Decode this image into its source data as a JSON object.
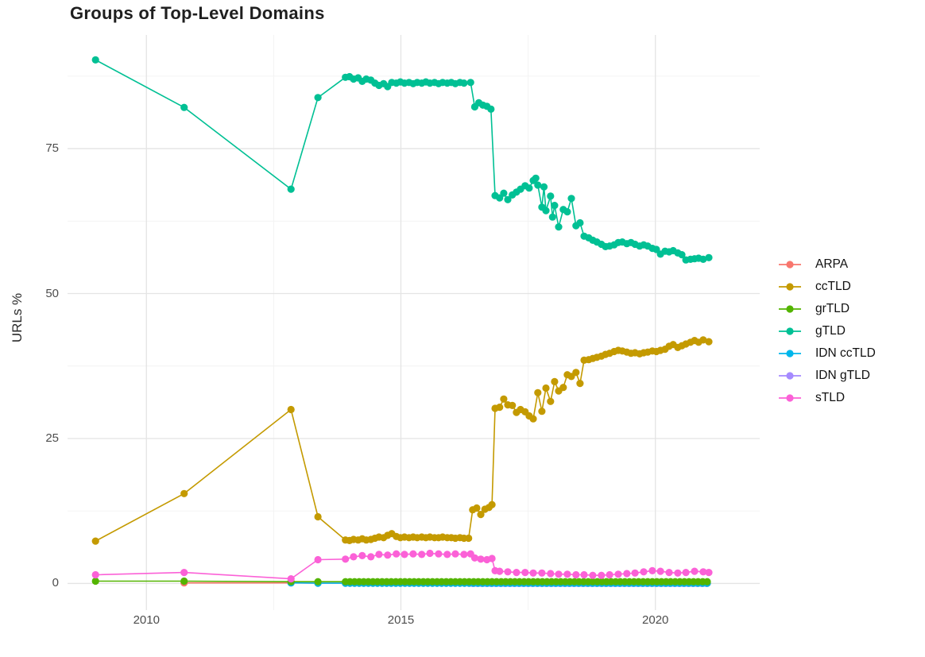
{
  "chart": {
    "title": "Groups of Top-Level Domains",
    "ylabel": "URLs %"
  },
  "chart_data": {
    "type": "line",
    "title": "Groups of Top-Level Domains",
    "xlabel": "",
    "ylabel": "URLs %",
    "xlim": [
      2008.45,
      2022.05
    ],
    "ylim": [
      -4.6,
      94.6
    ],
    "grid": true,
    "legend_position": "right",
    "marker": "circle",
    "x_ticks": [
      {
        "value": 2010,
        "label": "2010"
      },
      {
        "value": 2015,
        "label": "2015"
      },
      {
        "value": 2020,
        "label": "2020"
      }
    ],
    "y_ticks": [
      {
        "value": 0,
        "label": "0"
      },
      {
        "value": 25,
        "label": "25"
      },
      {
        "value": 50,
        "label": "50"
      },
      {
        "value": 75,
        "label": "75"
      }
    ],
    "x_minor": [
      2012.5,
      2017.5
    ],
    "y_minor": [
      12.5,
      37.5,
      62.5,
      87.5
    ],
    "grid_major_color": "#e4e4e4",
    "grid_minor_color": "#f2f2f2",
    "axis_text_color": "#4d4d4d",
    "z_order": [
      "ARPA",
      "IDN gTLD",
      "IDN ccTLD",
      "gTLD",
      "ccTLD",
      "grTLD",
      "sTLD"
    ],
    "series": [
      {
        "name": "ARPA",
        "color": "#F8766D",
        "points": [
          [
            2010.74,
            0.1
          ],
          [
            2012.84,
            0.1
          ],
          [
            2013.37,
            0.05
          ]
        ],
        "flat": {
          "from": 2013.91,
          "to": 2021.05,
          "step": 0.09,
          "value": 0.05
        }
      },
      {
        "name": "ccTLD",
        "color": "#C49A00",
        "points": [
          [
            2009.0,
            7.3
          ],
          [
            2010.74,
            15.5
          ],
          [
            2012.84,
            30.0
          ],
          [
            2013.37,
            11.5
          ],
          [
            2013.91,
            7.5
          ],
          [
            2013.99,
            7.4
          ],
          [
            2014.07,
            7.6
          ],
          [
            2014.16,
            7.5
          ],
          [
            2014.24,
            7.7
          ],
          [
            2014.32,
            7.5
          ],
          [
            2014.41,
            7.6
          ],
          [
            2014.49,
            7.8
          ],
          [
            2014.57,
            8.0
          ],
          [
            2014.66,
            7.9
          ],
          [
            2014.74,
            8.3
          ],
          [
            2014.82,
            8.6
          ],
          [
            2014.91,
            8.1
          ],
          [
            2014.99,
            7.9
          ],
          [
            2015.07,
            8.0
          ],
          [
            2015.16,
            7.9
          ],
          [
            2015.24,
            8.0
          ],
          [
            2015.32,
            7.9
          ],
          [
            2015.41,
            8.0
          ],
          [
            2015.49,
            7.9
          ],
          [
            2015.57,
            8.0
          ],
          [
            2015.66,
            7.9
          ],
          [
            2015.74,
            7.9
          ],
          [
            2015.82,
            8.0
          ],
          [
            2015.91,
            7.9
          ],
          [
            2015.99,
            7.9
          ],
          [
            2016.07,
            7.8
          ],
          [
            2016.16,
            7.9
          ],
          [
            2016.24,
            7.8
          ],
          [
            2016.33,
            7.8
          ],
          [
            2016.41,
            12.7
          ],
          [
            2016.49,
            13.0
          ],
          [
            2016.57,
            11.9
          ],
          [
            2016.65,
            12.8
          ],
          [
            2016.73,
            13.1
          ],
          [
            2016.79,
            13.6
          ],
          [
            2016.85,
            30.2
          ],
          [
            2016.94,
            30.4
          ],
          [
            2017.02,
            31.8
          ],
          [
            2017.1,
            30.8
          ],
          [
            2017.19,
            30.7
          ],
          [
            2017.27,
            29.5
          ],
          [
            2017.35,
            30.0
          ],
          [
            2017.44,
            29.6
          ],
          [
            2017.52,
            28.9
          ],
          [
            2017.6,
            28.4
          ],
          [
            2017.69,
            32.9
          ],
          [
            2017.77,
            29.7
          ],
          [
            2017.85,
            33.7
          ],
          [
            2017.94,
            31.4
          ],
          [
            2018.02,
            34.8
          ],
          [
            2018.1,
            33.2
          ],
          [
            2018.19,
            33.8
          ],
          [
            2018.27,
            36.0
          ],
          [
            2018.35,
            35.7
          ],
          [
            2018.44,
            36.4
          ],
          [
            2018.52,
            34.5
          ],
          [
            2018.6,
            38.5
          ],
          [
            2018.69,
            38.6
          ],
          [
            2018.77,
            38.8
          ],
          [
            2018.85,
            39.0
          ],
          [
            2018.94,
            39.2
          ],
          [
            2019.02,
            39.5
          ],
          [
            2019.1,
            39.7
          ],
          [
            2019.19,
            40.0
          ],
          [
            2019.27,
            40.2
          ],
          [
            2019.35,
            40.1
          ],
          [
            2019.44,
            39.9
          ],
          [
            2019.52,
            39.7
          ],
          [
            2019.6,
            39.8
          ],
          [
            2019.69,
            39.6
          ],
          [
            2019.77,
            39.8
          ],
          [
            2019.85,
            39.9
          ],
          [
            2019.94,
            40.1
          ],
          [
            2020.02,
            40.0
          ],
          [
            2020.1,
            40.2
          ],
          [
            2020.19,
            40.4
          ],
          [
            2020.27,
            40.9
          ],
          [
            2020.35,
            41.2
          ],
          [
            2020.44,
            40.7
          ],
          [
            2020.52,
            41.0
          ],
          [
            2020.6,
            41.3
          ],
          [
            2020.69,
            41.6
          ],
          [
            2020.77,
            41.9
          ],
          [
            2020.85,
            41.6
          ],
          [
            2020.94,
            42.0
          ],
          [
            2021.05,
            41.7
          ]
        ]
      },
      {
        "name": "grTLD",
        "color": "#53B400",
        "points": [
          [
            2009.0,
            0.4
          ],
          [
            2010.74,
            0.4
          ],
          [
            2012.84,
            0.3
          ],
          [
            2013.37,
            0.3
          ]
        ],
        "flat": {
          "from": 2013.91,
          "to": 2021.05,
          "step": 0.09,
          "value": 0.3
        }
      },
      {
        "name": "gTLD",
        "color": "#00C094",
        "points": [
          [
            2009.0,
            90.3
          ],
          [
            2010.74,
            82.1
          ],
          [
            2012.84,
            68.0
          ],
          [
            2013.37,
            83.8
          ],
          [
            2013.91,
            87.3
          ],
          [
            2013.99,
            87.4
          ],
          [
            2014.07,
            87.0
          ],
          [
            2014.16,
            87.2
          ],
          [
            2014.24,
            86.6
          ],
          [
            2014.32,
            87.0
          ],
          [
            2014.41,
            86.8
          ],
          [
            2014.49,
            86.3
          ],
          [
            2014.57,
            85.9
          ],
          [
            2014.66,
            86.2
          ],
          [
            2014.74,
            85.7
          ],
          [
            2014.82,
            86.4
          ],
          [
            2014.91,
            86.3
          ],
          [
            2014.99,
            86.5
          ],
          [
            2015.07,
            86.3
          ],
          [
            2015.16,
            86.4
          ],
          [
            2015.24,
            86.2
          ],
          [
            2015.32,
            86.4
          ],
          [
            2015.41,
            86.3
          ],
          [
            2015.49,
            86.5
          ],
          [
            2015.57,
            86.3
          ],
          [
            2015.66,
            86.4
          ],
          [
            2015.74,
            86.2
          ],
          [
            2015.82,
            86.4
          ],
          [
            2015.91,
            86.3
          ],
          [
            2015.99,
            86.4
          ],
          [
            2016.07,
            86.2
          ],
          [
            2016.16,
            86.4
          ],
          [
            2016.24,
            86.3
          ],
          [
            2016.37,
            86.4
          ],
          [
            2016.45,
            82.2
          ],
          [
            2016.53,
            82.9
          ],
          [
            2016.61,
            82.5
          ],
          [
            2016.69,
            82.3
          ],
          [
            2016.77,
            81.8
          ],
          [
            2016.85,
            66.9
          ],
          [
            2016.94,
            66.5
          ],
          [
            2017.02,
            67.3
          ],
          [
            2017.1,
            66.2
          ],
          [
            2017.19,
            67.0
          ],
          [
            2017.27,
            67.5
          ],
          [
            2017.35,
            68.0
          ],
          [
            2017.44,
            68.6
          ],
          [
            2017.52,
            68.2
          ],
          [
            2017.6,
            69.5
          ],
          [
            2017.65,
            69.9
          ],
          [
            2017.69,
            68.7
          ],
          [
            2017.77,
            64.9
          ],
          [
            2017.81,
            68.4
          ],
          [
            2017.85,
            64.3
          ],
          [
            2017.94,
            66.8
          ],
          [
            2017.98,
            63.2
          ],
          [
            2018.02,
            65.2
          ],
          [
            2018.1,
            61.5
          ],
          [
            2018.19,
            64.5
          ],
          [
            2018.27,
            64.1
          ],
          [
            2018.35,
            66.4
          ],
          [
            2018.44,
            61.7
          ],
          [
            2018.52,
            62.2
          ],
          [
            2018.6,
            59.9
          ],
          [
            2018.69,
            59.6
          ],
          [
            2018.77,
            59.2
          ],
          [
            2018.85,
            58.9
          ],
          [
            2018.94,
            58.5
          ],
          [
            2019.02,
            58.1
          ],
          [
            2019.1,
            58.2
          ],
          [
            2019.19,
            58.4
          ],
          [
            2019.27,
            58.8
          ],
          [
            2019.35,
            58.9
          ],
          [
            2019.44,
            58.6
          ],
          [
            2019.52,
            58.8
          ],
          [
            2019.6,
            58.5
          ],
          [
            2019.69,
            58.2
          ],
          [
            2019.77,
            58.4
          ],
          [
            2019.85,
            58.2
          ],
          [
            2019.94,
            57.8
          ],
          [
            2020.02,
            57.6
          ],
          [
            2020.1,
            56.8
          ],
          [
            2020.19,
            57.3
          ],
          [
            2020.27,
            57.2
          ],
          [
            2020.35,
            57.4
          ],
          [
            2020.44,
            57.0
          ],
          [
            2020.52,
            56.7
          ],
          [
            2020.6,
            55.8
          ],
          [
            2020.69,
            55.9
          ],
          [
            2020.77,
            56.0
          ],
          [
            2020.85,
            56.1
          ],
          [
            2020.94,
            55.9
          ],
          [
            2021.05,
            56.2
          ]
        ]
      },
      {
        "name": "IDN ccTLD",
        "color": "#00B6EB",
        "points": [
          [
            2012.84,
            0.1
          ],
          [
            2013.37,
            0.05
          ]
        ],
        "flat": {
          "from": 2013.91,
          "to": 2021.05,
          "step": 0.09,
          "value": 0.05
        }
      },
      {
        "name": "IDN gTLD",
        "color": "#A58AFF",
        "points": [],
        "flat": {
          "from": 2016.41,
          "to": 2021.05,
          "step": 0.09,
          "value": 0.0
        }
      },
      {
        "name": "sTLD",
        "color": "#FB61D7",
        "points": [
          [
            2009.0,
            1.5
          ],
          [
            2010.74,
            1.9
          ],
          [
            2012.84,
            0.8
          ],
          [
            2013.37,
            4.1
          ],
          [
            2013.91,
            4.2
          ],
          [
            2014.07,
            4.6
          ],
          [
            2014.24,
            4.8
          ],
          [
            2014.41,
            4.6
          ],
          [
            2014.57,
            5.0
          ],
          [
            2014.74,
            4.9
          ],
          [
            2014.91,
            5.1
          ],
          [
            2015.07,
            5.0
          ],
          [
            2015.24,
            5.1
          ],
          [
            2015.41,
            5.0
          ],
          [
            2015.57,
            5.2
          ],
          [
            2015.74,
            5.1
          ],
          [
            2015.91,
            5.0
          ],
          [
            2016.07,
            5.1
          ],
          [
            2016.24,
            5.0
          ],
          [
            2016.37,
            5.1
          ],
          [
            2016.45,
            4.4
          ],
          [
            2016.57,
            4.2
          ],
          [
            2016.69,
            4.1
          ],
          [
            2016.79,
            4.3
          ],
          [
            2016.85,
            2.2
          ],
          [
            2016.94,
            2.1
          ],
          [
            2017.1,
            2.0
          ],
          [
            2017.27,
            1.9
          ],
          [
            2017.44,
            1.9
          ],
          [
            2017.6,
            1.8
          ],
          [
            2017.77,
            1.8
          ],
          [
            2017.94,
            1.7
          ],
          [
            2018.1,
            1.6
          ],
          [
            2018.27,
            1.6
          ],
          [
            2018.44,
            1.5
          ],
          [
            2018.6,
            1.5
          ],
          [
            2018.77,
            1.4
          ],
          [
            2018.94,
            1.4
          ],
          [
            2019.1,
            1.5
          ],
          [
            2019.27,
            1.6
          ],
          [
            2019.44,
            1.7
          ],
          [
            2019.6,
            1.8
          ],
          [
            2019.77,
            2.0
          ],
          [
            2019.94,
            2.2
          ],
          [
            2020.1,
            2.1
          ],
          [
            2020.27,
            1.9
          ],
          [
            2020.44,
            1.8
          ],
          [
            2020.6,
            1.9
          ],
          [
            2020.77,
            2.1
          ],
          [
            2020.94,
            2.0
          ],
          [
            2021.05,
            1.9
          ]
        ]
      }
    ]
  }
}
